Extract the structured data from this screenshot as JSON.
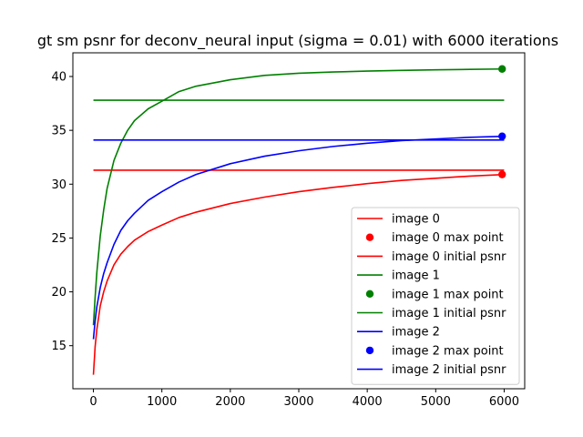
{
  "chart_data": {
    "type": "line",
    "title": "gt sm psnr for deconv_neural input (sigma = 0.01) with 6000 iterations",
    "xlabel": "",
    "ylabel": "",
    "xlim": [
      -300,
      6300
    ],
    "ylim": [
      11.0,
      42.2
    ],
    "xticks": [
      0,
      1000,
      2000,
      3000,
      4000,
      5000,
      6000
    ],
    "yticks": [
      15,
      20,
      25,
      30,
      35,
      40
    ],
    "grid": false,
    "legend_position": "lower-right",
    "series": [
      {
        "name": "image 0",
        "color": "#ff0000",
        "kind": "line",
        "x": [
          0,
          25,
          50,
          100,
          150,
          200,
          300,
          400,
          500,
          600,
          800,
          1000,
          1250,
          1500,
          2000,
          2500,
          3000,
          3500,
          4000,
          4500,
          5000,
          5500,
          6000
        ],
        "y": [
          12.3,
          14.9,
          16.5,
          18.7,
          20.0,
          21.0,
          22.5,
          23.5,
          24.2,
          24.8,
          25.6,
          26.2,
          26.9,
          27.4,
          28.2,
          28.8,
          29.3,
          29.7,
          30.05,
          30.35,
          30.55,
          30.75,
          30.9
        ]
      },
      {
        "name": "image 0 max point",
        "color": "#ff0000",
        "kind": "scatter",
        "x": [
          5970
        ],
        "y": [
          30.9
        ]
      },
      {
        "name": "image 0 initial psnr",
        "color": "#ff0000",
        "kind": "hline",
        "x": [
          0,
          6000
        ],
        "y": [
          31.3,
          31.3
        ]
      },
      {
        "name": "image 1",
        "color": "#008000",
        "kind": "line",
        "x": [
          0,
          25,
          50,
          100,
          150,
          200,
          300,
          400,
          500,
          600,
          800,
          1000,
          1250,
          1500,
          2000,
          2500,
          3000,
          3500,
          4000,
          4500,
          5000,
          5500,
          6000
        ],
        "y": [
          16.9,
          19.5,
          21.8,
          25.2,
          27.6,
          29.6,
          32.2,
          33.8,
          35.0,
          35.9,
          37.0,
          37.7,
          38.6,
          39.1,
          39.7,
          40.1,
          40.3,
          40.42,
          40.5,
          40.57,
          40.62,
          40.66,
          40.7
        ]
      },
      {
        "name": "image 1 max point",
        "color": "#008000",
        "kind": "scatter",
        "x": [
          5970
        ],
        "y": [
          40.7
        ]
      },
      {
        "name": "image 1 initial psnr",
        "color": "#008000",
        "kind": "hline",
        "x": [
          0,
          6000
        ],
        "y": [
          37.8,
          37.8
        ]
      },
      {
        "name": "image 2",
        "color": "#0000ff",
        "kind": "line",
        "x": [
          0,
          25,
          50,
          100,
          150,
          200,
          300,
          400,
          500,
          600,
          800,
          1000,
          1250,
          1500,
          2000,
          2500,
          3000,
          3500,
          4000,
          4500,
          5000,
          5500,
          6000
        ],
        "y": [
          15.6,
          17.3,
          18.6,
          20.4,
          21.7,
          22.7,
          24.4,
          25.7,
          26.6,
          27.3,
          28.5,
          29.3,
          30.2,
          30.9,
          31.9,
          32.6,
          33.1,
          33.5,
          33.8,
          34.05,
          34.2,
          34.35,
          34.45
        ]
      },
      {
        "name": "image 2 max point",
        "color": "#0000ff",
        "kind": "scatter",
        "x": [
          5970
        ],
        "y": [
          34.45
        ]
      },
      {
        "name": "image 2 initial psnr",
        "color": "#0000ff",
        "kind": "hline",
        "x": [
          0,
          6000
        ],
        "y": [
          34.1,
          34.1
        ]
      }
    ]
  }
}
